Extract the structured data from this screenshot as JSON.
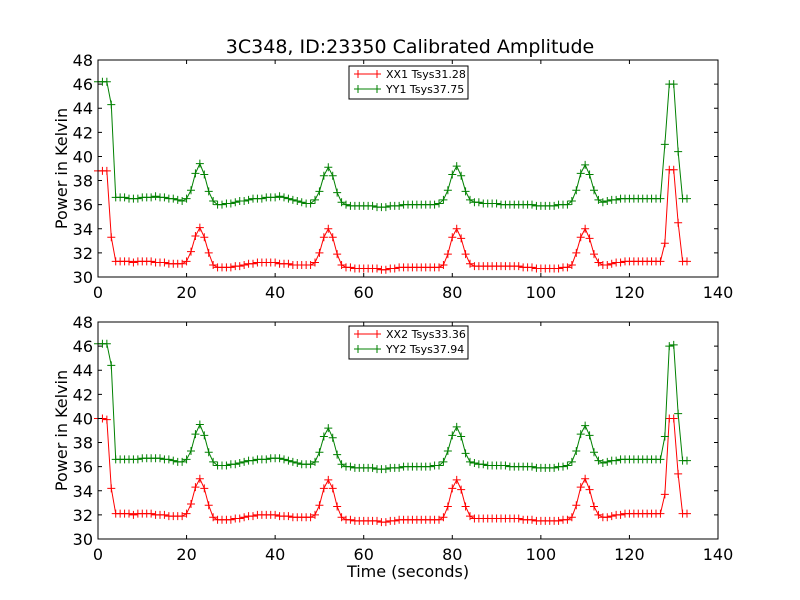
{
  "title": "3C348, ID:23350 Calibrated Amplitude",
  "chart_data": [
    {
      "type": "line",
      "ylabel": "Power in Kelvin",
      "xlabel": "",
      "xlim": [
        0,
        140
      ],
      "ylim": [
        30,
        48
      ],
      "xticks": [
        "0",
        "20",
        "40",
        "60",
        "80",
        "100",
        "120",
        "140"
      ],
      "yticks": [
        "30",
        "32",
        "34",
        "36",
        "38",
        "40",
        "42",
        "44",
        "46",
        "48"
      ],
      "legend": "top-center",
      "x_start": 0,
      "x_step": 1,
      "series": [
        {
          "name": "XX1 Tsys31.28",
          "color": "#ff0000",
          "marker": "+",
          "values": [
            38.8,
            38.8,
            38.8,
            33.3,
            31.3,
            31.3,
            31.3,
            31.3,
            31.2,
            31.3,
            31.3,
            31.3,
            31.3,
            31.2,
            31.2,
            31.2,
            31.1,
            31.1,
            31.1,
            31.1,
            31.3,
            32.1,
            33.4,
            34.1,
            33.3,
            32.0,
            31.0,
            30.8,
            30.8,
            30.8,
            30.8,
            30.9,
            30.9,
            31.0,
            31.1,
            31.1,
            31.2,
            31.2,
            31.2,
            31.2,
            31.2,
            31.1,
            31.1,
            31.1,
            31.0,
            31.0,
            31.0,
            31.0,
            31.0,
            31.2,
            32.0,
            33.3,
            34.0,
            33.3,
            31.9,
            31.0,
            30.8,
            30.8,
            30.7,
            30.7,
            30.7,
            30.7,
            30.7,
            30.7,
            30.6,
            30.6,
            30.7,
            30.7,
            30.8,
            30.8,
            30.8,
            30.8,
            30.8,
            30.8,
            30.8,
            30.8,
            30.8,
            30.8,
            31.0,
            31.9,
            33.3,
            34.0,
            33.2,
            31.9,
            31.1,
            30.9,
            30.9,
            30.9,
            30.9,
            30.9,
            30.9,
            30.9,
            30.9,
            30.9,
            30.9,
            30.9,
            30.8,
            30.8,
            30.8,
            30.7,
            30.7,
            30.7,
            30.7,
            30.7,
            30.7,
            30.8,
            30.8,
            31.0,
            32.0,
            33.3,
            34.0,
            33.2,
            31.9,
            31.2,
            31.0,
            31.0,
            31.1,
            31.2,
            31.2,
            31.3,
            31.3,
            31.3,
            31.3,
            31.3,
            31.3,
            31.3,
            31.3,
            31.3,
            32.8,
            38.9,
            38.9,
            34.5,
            31.3,
            31.3
          ]
        },
        {
          "name": "YY1 Tsys37.75",
          "color": "#008000",
          "marker": "+",
          "values": [
            46.2,
            46.2,
            46.2,
            44.3,
            36.6,
            36.6,
            36.6,
            36.5,
            36.5,
            36.5,
            36.6,
            36.6,
            36.6,
            36.7,
            36.6,
            36.6,
            36.5,
            36.5,
            36.4,
            36.3,
            36.5,
            37.2,
            38.6,
            39.4,
            38.5,
            37.1,
            36.3,
            36.0,
            36.0,
            36.1,
            36.1,
            36.2,
            36.3,
            36.3,
            36.4,
            36.5,
            36.5,
            36.5,
            36.6,
            36.6,
            36.6,
            36.7,
            36.6,
            36.5,
            36.4,
            36.3,
            36.2,
            36.1,
            36.1,
            36.4,
            37.1,
            38.4,
            39.1,
            38.4,
            37.0,
            36.2,
            36.0,
            35.9,
            35.9,
            35.9,
            35.9,
            35.9,
            35.9,
            35.8,
            35.8,
            35.8,
            35.9,
            35.9,
            35.9,
            36.0,
            36.0,
            36.0,
            36.0,
            36.0,
            36.0,
            36.0,
            36.0,
            36.1,
            36.4,
            37.2,
            38.5,
            39.2,
            38.4,
            37.1,
            36.4,
            36.2,
            36.2,
            36.1,
            36.1,
            36.1,
            36.1,
            36.0,
            36.0,
            36.0,
            36.0,
            36.0,
            36.0,
            36.0,
            36.0,
            35.9,
            35.9,
            35.9,
            35.9,
            35.9,
            36.0,
            36.0,
            36.0,
            36.3,
            37.2,
            38.6,
            39.3,
            38.5,
            37.2,
            36.4,
            36.2,
            36.3,
            36.4,
            36.4,
            36.5,
            36.5,
            36.5,
            36.5,
            36.5,
            36.5,
            36.5,
            36.5,
            36.5,
            36.5,
            41.0,
            46.0,
            46.0,
            40.4,
            36.5,
            36.5
          ]
        }
      ]
    },
    {
      "type": "line",
      "ylabel": "Power in Kelvin",
      "xlabel": "Time (seconds)",
      "xlim": [
        0,
        140
      ],
      "ylim": [
        30,
        48
      ],
      "xticks": [
        "0",
        "20",
        "40",
        "60",
        "80",
        "100",
        "120",
        "140"
      ],
      "yticks": [
        "30",
        "32",
        "34",
        "36",
        "38",
        "40",
        "42",
        "44",
        "46",
        "48"
      ],
      "legend": "top-center",
      "x_start": 0,
      "x_step": 1,
      "series": [
        {
          "name": "XX2 Tsys33.36",
          "color": "#ff0000",
          "marker": "+",
          "values": [
            40.0,
            40.0,
            39.9,
            34.2,
            32.1,
            32.1,
            32.1,
            32.1,
            32.0,
            32.1,
            32.1,
            32.1,
            32.1,
            32.0,
            32.0,
            32.0,
            31.9,
            31.9,
            31.9,
            31.9,
            32.1,
            32.9,
            34.3,
            35.0,
            34.2,
            32.8,
            31.8,
            31.6,
            31.6,
            31.6,
            31.6,
            31.7,
            31.7,
            31.8,
            31.9,
            31.9,
            32.0,
            32.0,
            32.0,
            32.0,
            32.0,
            31.9,
            31.9,
            31.9,
            31.8,
            31.8,
            31.8,
            31.8,
            31.8,
            32.0,
            32.8,
            34.2,
            34.9,
            34.2,
            32.7,
            31.8,
            31.6,
            31.6,
            31.5,
            31.5,
            31.5,
            31.5,
            31.5,
            31.5,
            31.4,
            31.4,
            31.5,
            31.5,
            31.6,
            31.6,
            31.6,
            31.6,
            31.6,
            31.6,
            31.6,
            31.6,
            31.6,
            31.6,
            31.8,
            32.7,
            34.2,
            34.9,
            34.1,
            32.7,
            31.9,
            31.7,
            31.7,
            31.7,
            31.7,
            31.7,
            31.7,
            31.7,
            31.7,
            31.7,
            31.7,
            31.7,
            31.6,
            31.6,
            31.6,
            31.5,
            31.5,
            31.5,
            31.5,
            31.5,
            31.5,
            31.6,
            31.6,
            31.8,
            32.8,
            34.3,
            35.0,
            34.1,
            32.7,
            32.0,
            31.8,
            31.8,
            31.9,
            32.0,
            32.0,
            32.1,
            32.1,
            32.1,
            32.1,
            32.1,
            32.1,
            32.1,
            32.1,
            32.1,
            33.7,
            40.0,
            40.0,
            35.4,
            32.1,
            32.1
          ]
        },
        {
          "name": "YY2 Tsys37.94",
          "color": "#008000",
          "marker": "+",
          "values": [
            46.2,
            46.2,
            46.2,
            44.4,
            36.6,
            36.6,
            36.6,
            36.6,
            36.6,
            36.6,
            36.7,
            36.7,
            36.7,
            36.7,
            36.7,
            36.6,
            36.6,
            36.5,
            36.4,
            36.4,
            36.6,
            37.3,
            38.7,
            39.5,
            38.6,
            37.2,
            36.4,
            36.1,
            36.1,
            36.1,
            36.2,
            36.2,
            36.3,
            36.4,
            36.5,
            36.5,
            36.6,
            36.6,
            36.6,
            36.7,
            36.7,
            36.7,
            36.6,
            36.5,
            36.4,
            36.3,
            36.2,
            36.2,
            36.2,
            36.4,
            37.2,
            38.5,
            39.2,
            38.4,
            37.0,
            36.2,
            36.0,
            36.0,
            35.9,
            35.9,
            35.9,
            35.9,
            35.9,
            35.8,
            35.8,
            35.8,
            35.9,
            35.9,
            35.9,
            36.0,
            36.0,
            36.0,
            36.0,
            36.0,
            36.0,
            36.0,
            36.1,
            36.1,
            36.4,
            37.3,
            38.6,
            39.3,
            38.5,
            37.1,
            36.4,
            36.3,
            36.2,
            36.2,
            36.1,
            36.1,
            36.1,
            36.1,
            36.1,
            36.0,
            36.0,
            36.0,
            36.0,
            36.0,
            36.0,
            35.9,
            35.9,
            35.9,
            35.9,
            35.9,
            36.0,
            36.0,
            36.1,
            36.4,
            37.3,
            38.7,
            39.4,
            38.6,
            37.2,
            36.5,
            36.3,
            36.4,
            36.5,
            36.5,
            36.6,
            36.6,
            36.6,
            36.6,
            36.6,
            36.6,
            36.6,
            36.6,
            36.6,
            36.6,
            38.5,
            46.0,
            46.1,
            40.4,
            36.5,
            36.5
          ]
        }
      ]
    }
  ]
}
